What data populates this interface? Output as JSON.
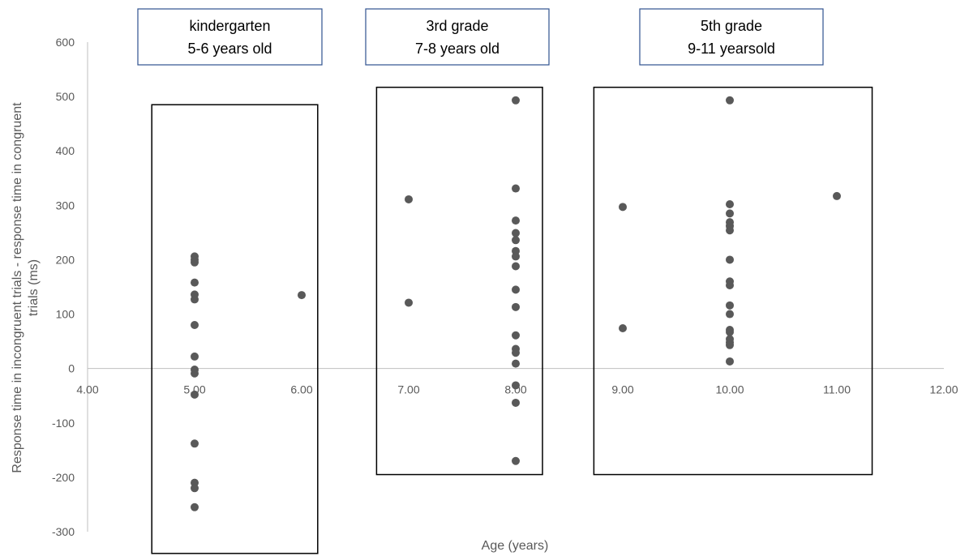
{
  "chart_data": {
    "type": "scatter",
    "xlabel": "Age (years)",
    "ylabel_lines": [
      "Response time in incongruent trials - response time in congruent",
      "trials (ms)"
    ],
    "xlim": [
      4,
      12
    ],
    "ylim": [
      -300,
      600
    ],
    "x_ticks": [
      "4.00",
      "5.00",
      "6.00",
      "7.00",
      "8.00",
      "9.00",
      "10.00",
      "11.00",
      "12.00"
    ],
    "y_ticks": [
      "600",
      "500",
      "400",
      "300",
      "200",
      "100",
      "0",
      "-100",
      "-200",
      "-300"
    ],
    "grid": false,
    "point_color": "#595959",
    "points": [
      {
        "x": 5,
        "y": 206
      },
      {
        "x": 5,
        "y": 200
      },
      {
        "x": 5,
        "y": 195
      },
      {
        "x": 5,
        "y": 158
      },
      {
        "x": 5,
        "y": 136
      },
      {
        "x": 5,
        "y": 127
      },
      {
        "x": 5,
        "y": 80
      },
      {
        "x": 5,
        "y": 22
      },
      {
        "x": 5,
        "y": -2
      },
      {
        "x": 5,
        "y": -9
      },
      {
        "x": 5,
        "y": -48
      },
      {
        "x": 5,
        "y": -138
      },
      {
        "x": 5,
        "y": -210
      },
      {
        "x": 5,
        "y": -220
      },
      {
        "x": 5,
        "y": -255
      },
      {
        "x": 6,
        "y": 135
      },
      {
        "x": 7,
        "y": 311
      },
      {
        "x": 7,
        "y": 121
      },
      {
        "x": 8,
        "y": 493
      },
      {
        "x": 8,
        "y": 331
      },
      {
        "x": 8,
        "y": 272
      },
      {
        "x": 8,
        "y": 249
      },
      {
        "x": 8,
        "y": 236
      },
      {
        "x": 8,
        "y": 216
      },
      {
        "x": 8,
        "y": 206
      },
      {
        "x": 8,
        "y": 188
      },
      {
        "x": 8,
        "y": 145
      },
      {
        "x": 8,
        "y": 113
      },
      {
        "x": 8,
        "y": 61
      },
      {
        "x": 8,
        "y": 36
      },
      {
        "x": 8,
        "y": 29
      },
      {
        "x": 8,
        "y": 9
      },
      {
        "x": 8,
        "y": -31
      },
      {
        "x": 8,
        "y": -63
      },
      {
        "x": 8,
        "y": -170
      },
      {
        "x": 9,
        "y": 297
      },
      {
        "x": 9,
        "y": 74
      },
      {
        "x": 10,
        "y": 493
      },
      {
        "x": 10,
        "y": 302
      },
      {
        "x": 10,
        "y": 285
      },
      {
        "x": 10,
        "y": 269
      },
      {
        "x": 10,
        "y": 262
      },
      {
        "x": 10,
        "y": 254
      },
      {
        "x": 10,
        "y": 200
      },
      {
        "x": 10,
        "y": 160
      },
      {
        "x": 10,
        "y": 153
      },
      {
        "x": 10,
        "y": 116
      },
      {
        "x": 10,
        "y": 100
      },
      {
        "x": 10,
        "y": 71
      },
      {
        "x": 10,
        "y": 67
      },
      {
        "x": 10,
        "y": 54
      },
      {
        "x": 10,
        "y": 48
      },
      {
        "x": 10,
        "y": 43
      },
      {
        "x": 10,
        "y": 13
      },
      {
        "x": 11,
        "y": 317
      }
    ],
    "groups": [
      {
        "lines": [
          "kindergarten",
          "5-6 years old"
        ],
        "x_from": 4.6,
        "x_to": 6.15,
        "y_from": -340,
        "y_to": 485
      },
      {
        "lines": [
          "3rd grade",
          "7-8 years old"
        ],
        "x_from": 6.7,
        "x_to": 8.25,
        "y_from": -195,
        "y_to": 517
      },
      {
        "lines": [
          "5th grade",
          "9-11 yearsold"
        ],
        "x_from": 8.73,
        "x_to": 11.33,
        "y_from": -195,
        "y_to": 517
      }
    ]
  }
}
